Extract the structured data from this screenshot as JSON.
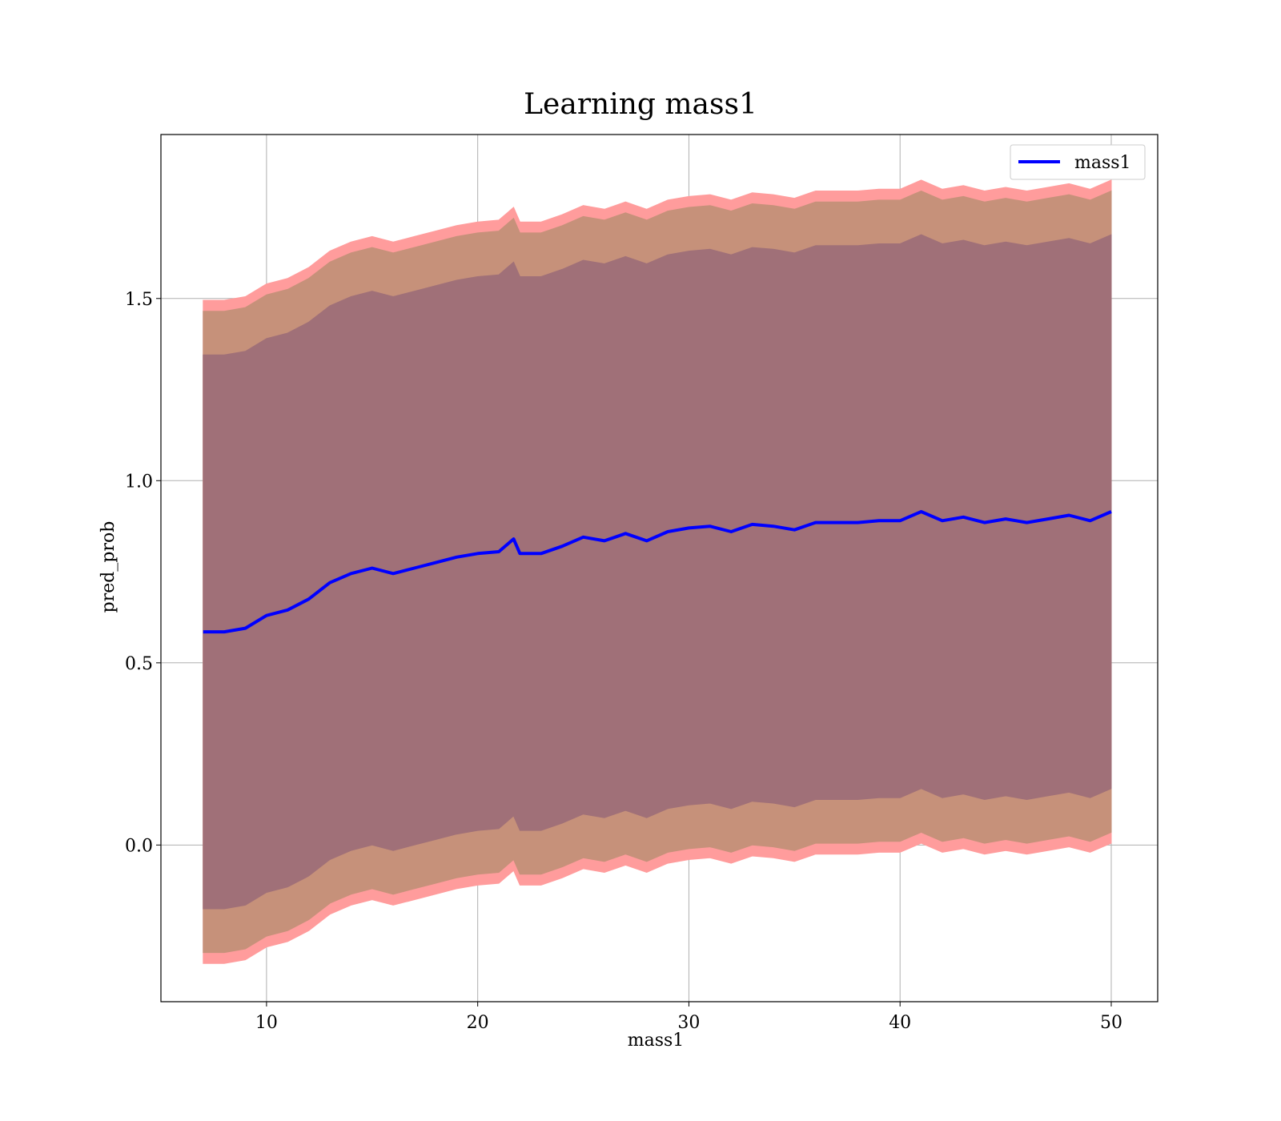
{
  "chart_data": {
    "type": "line",
    "title": "Learning mass1",
    "xlabel": "mass1",
    "ylabel": "pred_prob",
    "xlim": [
      5.0,
      52.2
    ],
    "ylim": [
      -0.43,
      1.95
    ],
    "xticks": [
      10,
      20,
      30,
      40,
      50
    ],
    "xtick_labels": [
      "10",
      "20",
      "30",
      "40",
      "50"
    ],
    "yticks": [
      0.0,
      0.5,
      1.0,
      1.5
    ],
    "ytick_labels": [
      "0.0",
      "0.5",
      "1.0",
      "1.5"
    ],
    "grid": true,
    "legend": {
      "position": "top-right",
      "entries": [
        "mass1"
      ]
    },
    "colors": {
      "line": "#0000ff",
      "band_outer": "#ff9c9c",
      "band_middle": "#c6917a",
      "band_inner": "#a07078"
    },
    "x": [
      7,
      8,
      9,
      10,
      11,
      12,
      13,
      14,
      15,
      16,
      17,
      18,
      19,
      20,
      21,
      21.7,
      22,
      23,
      24,
      25,
      26,
      27,
      28,
      29,
      30,
      31,
      32,
      33,
      34,
      35,
      36,
      37,
      38,
      39,
      40,
      41,
      42,
      43,
      44,
      45,
      46,
      47,
      48,
      49,
      50
    ],
    "series": [
      {
        "name": "mass1",
        "values": [
          0.585,
          0.585,
          0.595,
          0.63,
          0.645,
          0.675,
          0.72,
          0.745,
          0.76,
          0.745,
          0.76,
          0.775,
          0.79,
          0.8,
          0.805,
          0.84,
          0.8,
          0.8,
          0.82,
          0.845,
          0.835,
          0.855,
          0.835,
          0.86,
          0.87,
          0.875,
          0.86,
          0.88,
          0.875,
          0.865,
          0.885,
          0.885,
          0.885,
          0.89,
          0.89,
          0.915,
          0.89,
          0.9,
          0.885,
          0.895,
          0.885,
          0.895,
          0.905,
          0.89,
          0.915
        ]
      }
    ],
    "bands": [
      {
        "lower_offset": -0.91,
        "upper_offset": 0.91
      },
      {
        "lower_offset": -0.88,
        "upper_offset": 0.88
      },
      {
        "lower_offset": -0.76,
        "upper_offset": 0.76
      }
    ]
  }
}
